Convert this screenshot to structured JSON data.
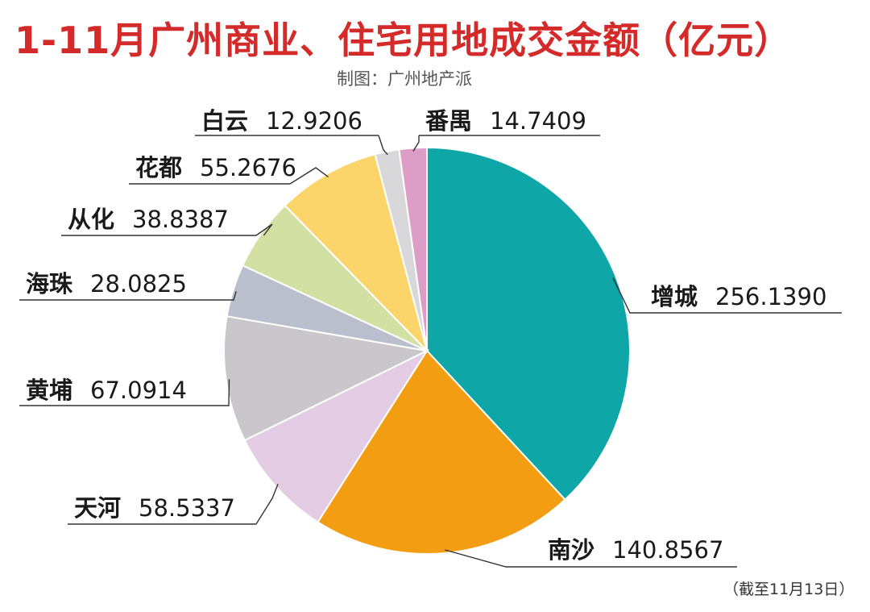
{
  "chart_data": {
    "type": "pie",
    "title": "1-11月广州商业、住宅用地成交金额（亿元）",
    "subtitle": "制图：广州地产派",
    "footnote": "（截至11月13日）",
    "slices": [
      {
        "label": "增城",
        "value": 256.139,
        "display": "256.1390",
        "color": "#0fa6a8"
      },
      {
        "label": "南沙",
        "value": 140.8567,
        "display": "140.8567",
        "color": "#f29d12"
      },
      {
        "label": "天河",
        "value": 58.5337,
        "display": "58.5337",
        "color": "#e3cce4"
      },
      {
        "label": "黄埔",
        "value": 67.0914,
        "display": "67.0914",
        "color": "#c9c6cc"
      },
      {
        "label": "海珠",
        "value": 28.0825,
        "display": "28.0825",
        "color": "#b9bfcc"
      },
      {
        "label": "从化",
        "value": 38.8387,
        "display": "38.8387",
        "color": "#d2e0a4"
      },
      {
        "label": "花都",
        "value": 55.2676,
        "display": "55.2676",
        "color": "#fbd46a"
      },
      {
        "label": "白云",
        "value": 12.9206,
        "display": "12.9206",
        "color": "#d8d8da"
      },
      {
        "label": "番禺",
        "value": 14.7409,
        "display": "14.7409",
        "color": "#dc9ec6"
      }
    ]
  }
}
